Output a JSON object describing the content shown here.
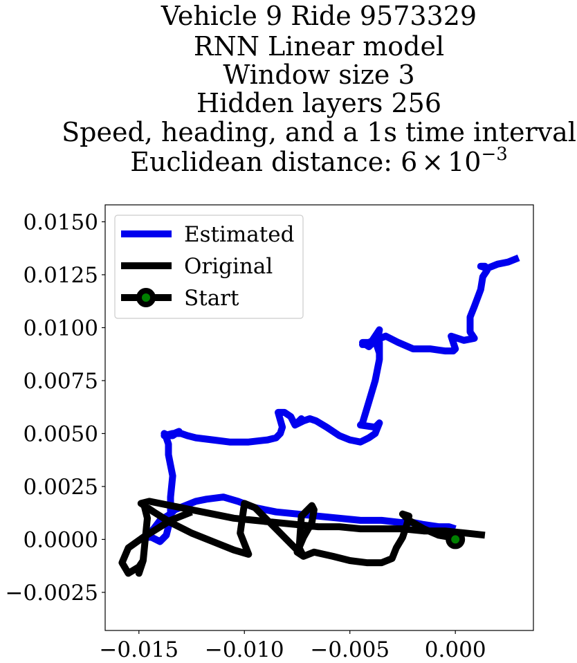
{
  "chart_data": {
    "type": "line",
    "title_lines": [
      "Vehicle 9 Ride 9573329",
      "RNN Linear model",
      "Window size 3",
      "Hidden layers 256",
      "Speed, heading, and a 1s time interval"
    ],
    "distance_line": {
      "prefix": "Euclidean distance: 6",
      "times": "×",
      "base": "10",
      "exponent": "−3"
    },
    "xlim": [
      -0.0166,
      0.0037
    ],
    "ylim": [
      -0.0043,
      0.0158
    ],
    "x_ticks": [
      -0.015,
      -0.01,
      -0.005,
      0.0
    ],
    "x_tick_labels": [
      "−0.015",
      "−0.010",
      "−0.005",
      "0.000"
    ],
    "y_ticks": [
      -0.0025,
      0.0,
      0.0025,
      0.005,
      0.0075,
      0.01,
      0.0125,
      0.015
    ],
    "y_tick_labels": [
      "−0.0025",
      "0.0000",
      "0.0025",
      "0.0050",
      "0.0075",
      "0.0100",
      "0.0125",
      "0.0150"
    ],
    "legend": {
      "location": "upper-left",
      "entries": [
        "Estimated",
        "Original",
        "Start"
      ]
    },
    "series": [
      {
        "name": "Estimated",
        "color": "#0000ee",
        "x": [
          0.0,
          -0.0003,
          -0.0008,
          -0.0015,
          -0.002,
          -0.0026,
          -0.0035,
          -0.0045,
          -0.0055,
          -0.0065,
          -0.0075,
          -0.0085,
          -0.0095,
          -0.0103,
          -0.011,
          -0.0118,
          -0.0123,
          -0.0128,
          -0.0133,
          -0.0135,
          -0.014,
          -0.0143,
          -0.0146,
          -0.0148,
          -0.0144,
          -0.014,
          -0.0137,
          -0.0135,
          -0.0135,
          -0.0134,
          -0.0135,
          -0.0136,
          -0.0136,
          -0.0137,
          -0.0138,
          -0.0136,
          -0.0131,
          -0.0134,
          -0.0138,
          -0.0134,
          -0.013,
          -0.0127,
          -0.0123,
          -0.0115,
          -0.0107,
          -0.0098,
          -0.0089,
          -0.0085,
          -0.0083,
          -0.0082,
          -0.0084,
          -0.0081,
          -0.0078,
          -0.0076,
          -0.0073,
          -0.0076,
          -0.0072,
          -0.0069,
          -0.0066,
          -0.0061,
          -0.0055,
          -0.005,
          -0.0045,
          -0.0041,
          -0.0038,
          -0.0036,
          -0.0038,
          -0.0045,
          -0.0044,
          -0.0041,
          -0.0038,
          -0.0036,
          -0.0036,
          -0.0037,
          -0.0036,
          -0.004,
          -0.0044,
          -0.0041,
          -0.0039,
          -0.0038,
          -0.004,
          -0.0042,
          -0.0044,
          -0.0043,
          -0.0039,
          -0.0036,
          -0.0036,
          -0.0038,
          -0.0033,
          -0.0027,
          -0.002,
          -0.0012,
          -0.0005,
          -0.0001,
          0.0,
          -0.0001,
          -0.0002,
          0.0004,
          0.0009,
          0.0007,
          0.0007,
          0.0009,
          0.0012,
          0.0013,
          0.0015,
          0.0014,
          0.0012,
          0.0015,
          0.002,
          0.0025,
          0.003
        ],
        "y": [
          0.0005,
          0.0006,
          0.0006,
          0.0007,
          0.0008,
          0.0008,
          0.0009,
          0.0009,
          0.001,
          0.0011,
          0.0012,
          0.0013,
          0.0015,
          0.0018,
          0.002,
          0.0019,
          0.0018,
          0.0016,
          0.0014,
          0.0012,
          0.0009,
          0.0005,
          0.0002,
          0.0001,
          0.0001,
          -0.0001,
          0.0002,
          0.001,
          0.002,
          0.003,
          0.0035,
          0.004,
          0.0045,
          0.0048,
          0.005,
          0.0049,
          0.0051,
          0.0049,
          0.0049,
          0.005,
          0.005,
          0.0049,
          0.0048,
          0.0047,
          0.0046,
          0.0046,
          0.0047,
          0.0048,
          0.005,
          0.0053,
          0.006,
          0.006,
          0.0058,
          0.0054,
          0.0057,
          0.0054,
          0.0056,
          0.0057,
          0.0056,
          0.0053,
          0.0049,
          0.0047,
          0.0046,
          0.0048,
          0.005,
          0.0055,
          0.0053,
          0.0054,
          0.0055,
          0.0065,
          0.0075,
          0.0085,
          0.009,
          0.0094,
          0.0099,
          0.0093,
          0.0093,
          0.0091,
          0.0093,
          0.0096,
          0.0093,
          0.0093,
          0.0092,
          0.0092,
          0.0094,
          0.0093,
          0.0088,
          0.0094,
          0.0096,
          0.0093,
          0.009,
          0.009,
          0.0089,
          0.0089,
          0.009,
          0.0093,
          0.0096,
          0.0094,
          0.0095,
          0.0098,
          0.0105,
          0.011,
          0.0118,
          0.0124,
          0.0127,
          0.0129,
          0.0129,
          0.0128,
          0.013,
          0.0131,
          0.0133
        ]
      },
      {
        "name": "Original",
        "color": "#000000",
        "x": [
          0.0014,
          0.0005,
          -0.0005,
          -0.0015,
          -0.0025,
          -0.0035,
          -0.0045,
          -0.0055,
          -0.0065,
          -0.0075,
          -0.0085,
          -0.0095,
          -0.0105,
          -0.0115,
          -0.0125,
          -0.0135,
          -0.0145,
          -0.0149,
          -0.0143,
          -0.0135,
          -0.0125,
          -0.0115,
          -0.0105,
          -0.0098,
          -0.0102,
          -0.01,
          -0.0095,
          -0.0085,
          -0.0078,
          -0.0072,
          -0.0074,
          -0.0073,
          -0.0068,
          -0.0067,
          -0.0068,
          -0.0072,
          -0.0075,
          -0.0072,
          -0.0067,
          -0.0058,
          -0.005,
          -0.0042,
          -0.0035,
          -0.003,
          -0.0028,
          -0.0025,
          -0.0023,
          -0.0022,
          -0.0025,
          -0.0022,
          -0.0015,
          -0.0008,
          -0.0002,
          0.0
        ],
        "y": [
          0.0002,
          0.0003,
          0.0004,
          0.0004,
          0.0005,
          0.0005,
          0.0005,
          0.0006,
          0.0006,
          0.0007,
          0.0008,
          0.0009,
          0.001,
          0.0012,
          0.0014,
          0.0016,
          0.0018,
          0.0017,
          0.0013,
          0.0008,
          0.0003,
          -0.0001,
          -0.0005,
          -0.0007,
          0.0003,
          0.0017,
          0.0015,
          0.0005,
          -0.0002,
          -0.0008,
          -0.0004,
          0.0011,
          0.0016,
          0.0014,
          0.0008,
          0.0001,
          -0.0006,
          -0.0008,
          -0.0006,
          -0.0008,
          -0.001,
          -0.0011,
          -0.0011,
          -0.0009,
          -0.0004,
          0.0001,
          0.0007,
          0.0011,
          0.0012,
          0.0009,
          0.0005,
          0.0002,
          0.0001,
          0.0
        ],
        "extra_loop_x": [
          -0.0125,
          -0.0135,
          -0.0143,
          -0.0148,
          -0.0155,
          -0.0158,
          -0.0155,
          -0.015,
          -0.0148,
          -0.015,
          -0.015,
          -0.0148,
          -0.0147,
          -0.0146,
          -0.0148
        ],
        "extra_loop_y": [
          0.0013,
          0.0009,
          0.0004,
          0.0001,
          -0.0004,
          -0.0011,
          -0.0016,
          -0.0013,
          -0.001,
          -0.0015,
          -0.0016,
          -0.001,
          0.0,
          0.001,
          0.0018
        ]
      }
    ],
    "start_point": {
      "name": "Start",
      "x": 0.0,
      "y": 0.0,
      "color": "#008000",
      "outline": "#000000"
    }
  }
}
